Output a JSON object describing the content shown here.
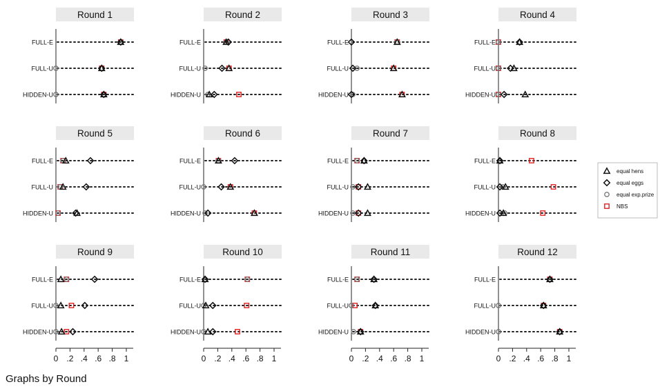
{
  "note": "Graphs by Round",
  "chart_data": {
    "type": "scatter",
    "x_ticks": [
      "0",
      ".2",
      ".4",
      ".6",
      ".8",
      "1"
    ],
    "xlim": [
      0,
      1
    ],
    "rows": [
      "FULL-E",
      "FULL-U",
      "HIDDEN-U"
    ],
    "legend": {
      "placement": "right",
      "entries": [
        {
          "key": "hens",
          "label": "equal hens"
        },
        {
          "key": "eggs",
          "label": "equal eggs"
        },
        {
          "key": "prize",
          "label": "equal exp.prize"
        },
        {
          "key": "nbs",
          "label": "NBS"
        }
      ]
    },
    "colors": {
      "strip": "#e9e9e9",
      "marker": "#111111",
      "prize": "#777777",
      "nbs": "#e02020"
    },
    "panels": [
      {
        "title": "Round 1",
        "values": {
          "FULL-E": {
            "hens": 0.92,
            "eggs": 0.92,
            "prize": 0.92,
            "nbs": 0.92
          },
          "FULL-U": {
            "hens": 0.65,
            "eggs": 0.65,
            "prize": 0.0,
            "nbs": 0.65
          },
          "HIDDEN-U": {
            "hens": 0.68,
            "eggs": 0.68,
            "prize": 0.0,
            "nbs": 0.68
          }
        }
      },
      {
        "title": "Round 2",
        "values": {
          "FULL-E": {
            "hens": 0.32,
            "eggs": 0.35,
            "prize": 0.32,
            "nbs": 0.32
          },
          "FULL-U": {
            "hens": 0.36,
            "eggs": 0.26,
            "prize": 0.02,
            "nbs": 0.36
          },
          "HIDDEN-U": {
            "hens": 0.08,
            "eggs": 0.15,
            "prize": 0.06,
            "nbs": 0.5
          }
        }
      },
      {
        "title": "Round 3",
        "values": {
          "FULL-E": {
            "hens": 0.65,
            "eggs": 0.0,
            "prize": 0.65,
            "nbs": 0.65
          },
          "FULL-U": {
            "hens": 0.6,
            "eggs": 0.02,
            "prize": 0.08,
            "nbs": 0.6
          },
          "HIDDEN-U": {
            "hens": 0.72,
            "eggs": 0.0,
            "prize": 0.02,
            "nbs": 0.72
          }
        }
      },
      {
        "title": "Round 4",
        "values": {
          "FULL-E": {
            "hens": 0.3,
            "eggs": 0.3,
            "prize": 0.0,
            "nbs": 0.0
          },
          "FULL-U": {
            "hens": 0.22,
            "eggs": 0.17,
            "prize": 0.0,
            "nbs": 0.0
          },
          "HIDDEN-U": {
            "hens": 0.38,
            "eggs": 0.08,
            "prize": 0.0,
            "nbs": 0.0
          }
        }
      },
      {
        "title": "Round 5",
        "values": {
          "FULL-E": {
            "hens": 0.14,
            "eggs": 0.49,
            "prize": 0.1,
            "nbs": 0.1
          },
          "FULL-U": {
            "hens": 0.1,
            "eggs": 0.43,
            "prize": 0.06,
            "nbs": 0.06
          },
          "HIDDEN-U": {
            "hens": 0.3,
            "eggs": 0.28,
            "prize": 0.03,
            "nbs": 0.03
          }
        }
      },
      {
        "title": "Round 6",
        "values": {
          "FULL-E": {
            "hens": 0.21,
            "eggs": 0.44,
            "prize": 0.21,
            "nbs": 0.21
          },
          "FULL-U": {
            "hens": 0.38,
            "eggs": 0.25,
            "prize": 0.0,
            "nbs": 0.38
          },
          "HIDDEN-U": {
            "hens": 0.72,
            "eggs": 0.06,
            "prize": 0.02,
            "nbs": 0.72
          }
        }
      },
      {
        "title": "Round 7",
        "values": {
          "FULL-E": {
            "hens": 0.18,
            "eggs": 0.18,
            "prize": 0.08,
            "nbs": 0.08
          },
          "FULL-U": {
            "hens": 0.23,
            "eggs": 0.1,
            "prize": 0.02,
            "nbs": 0.1
          },
          "HIDDEN-U": {
            "hens": 0.23,
            "eggs": 0.1,
            "prize": 0.02,
            "nbs": 0.1
          }
        }
      },
      {
        "title": "Round 8",
        "values": {
          "FULL-E": {
            "hens": 0.02,
            "eggs": 0.02,
            "prize": 0.02,
            "nbs": 0.47
          },
          "FULL-U": {
            "hens": 0.1,
            "eggs": 0.02,
            "prize": 0.06,
            "nbs": 0.78
          },
          "HIDDEN-U": {
            "hens": 0.07,
            "eggs": 0.02,
            "prize": 0.09,
            "nbs": 0.63
          }
        }
      },
      {
        "title": "Round 9",
        "values": {
          "FULL-E": {
            "hens": 0.07,
            "eggs": 0.55,
            "prize": 0.15,
            "nbs": 0.15
          },
          "FULL-U": {
            "hens": 0.07,
            "eggs": 0.41,
            "prize": 0.0,
            "nbs": 0.22
          },
          "HIDDEN-U": {
            "hens": 0.08,
            "eggs": 0.24,
            "prize": 0.0,
            "nbs": 0.15
          }
        }
      },
      {
        "title": "Round 10",
        "values": {
          "FULL-E": {
            "hens": 0.02,
            "eggs": 0.02,
            "prize": 0.62,
            "nbs": 0.62
          },
          "FULL-U": {
            "hens": 0.03,
            "eggs": 0.13,
            "prize": 0.0,
            "nbs": 0.61
          },
          "HIDDEN-U": {
            "hens": 0.06,
            "eggs": 0.13,
            "prize": 0.0,
            "nbs": 0.48
          }
        }
      },
      {
        "title": "Round 11",
        "values": {
          "FULL-E": {
            "hens": 0.32,
            "eggs": 0.32,
            "prize": 0.08,
            "nbs": 0.08
          },
          "FULL-U": {
            "hens": 0.34,
            "eggs": 0.34,
            "prize": 0.0,
            "nbs": 0.05
          },
          "HIDDEN-U": {
            "hens": 0.13,
            "eggs": 0.13,
            "prize": 0.03,
            "nbs": 0.13
          }
        }
      },
      {
        "title": "Round 12",
        "values": {
          "FULL-E": {
            "hens": 0.73,
            "eggs": 0.73,
            "prize": 0.73,
            "nbs": 0.73
          },
          "FULL-U": {
            "hens": 0.64,
            "eggs": 0.64,
            "prize": 0.0,
            "nbs": 0.64
          },
          "HIDDEN-U": {
            "hens": 0.87,
            "eggs": 0.87,
            "prize": 0.0,
            "nbs": 0.87
          }
        }
      }
    ]
  }
}
